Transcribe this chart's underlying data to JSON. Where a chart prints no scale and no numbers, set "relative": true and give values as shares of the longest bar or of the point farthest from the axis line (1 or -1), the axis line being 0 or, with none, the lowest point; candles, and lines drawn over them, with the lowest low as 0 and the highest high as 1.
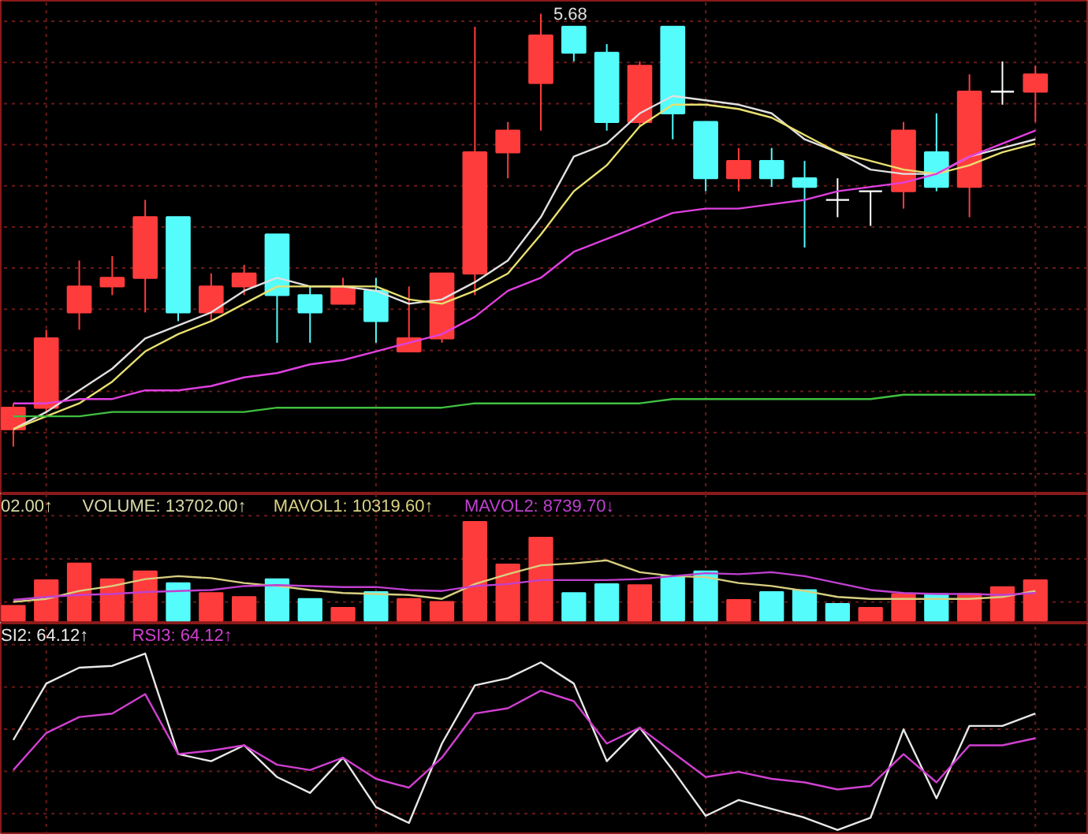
{
  "chart_data": [
    {
      "type": "candlestick",
      "relative": true,
      "grid": true,
      "categories": [
        null,
        null,
        null,
        null,
        null,
        null,
        null,
        null,
        null,
        null,
        null,
        null,
        null,
        null,
        null,
        null,
        null,
        null,
        null,
        null,
        null,
        null,
        null,
        null,
        null,
        null,
        null,
        null,
        null,
        null,
        null,
        null
      ],
      "ohlc": [
        [
          0.04,
          0.1,
          0,
          0.09
        ],
        [
          0.09,
          0.27,
          0.08,
          0.25
        ],
        [
          0.31,
          0.43,
          0.27,
          0.37
        ],
        [
          0.37,
          0.44,
          0.35,
          0.39
        ],
        [
          0.39,
          0.57,
          0.31,
          0.53
        ],
        [
          0.53,
          0.53,
          0.29,
          0.31
        ],
        [
          0.31,
          0.4,
          0.29,
          0.37
        ],
        [
          0.37,
          0.42,
          0.35,
          0.4
        ],
        [
          0.49,
          0.49,
          0.24,
          0.35
        ],
        [
          0.35,
          0.37,
          0.24,
          0.31
        ],
        [
          0.33,
          0.39,
          0.33,
          0.37
        ],
        [
          0.36,
          0.39,
          0.24,
          0.29
        ],
        [
          0.22,
          0.37,
          0.22,
          0.25
        ],
        [
          0.25,
          0.4,
          0.24,
          0.4
        ],
        [
          0.4,
          0.97,
          0.35,
          0.68
        ],
        [
          0.68,
          0.75,
          0.62,
          0.73
        ],
        [
          0.84,
          1.0,
          0.73,
          0.95
        ],
        [
          0.97,
          0.97,
          0.89,
          0.91
        ],
        [
          0.91,
          0.93,
          0.73,
          0.75
        ],
        [
          0.75,
          0.89,
          0.74,
          0.88
        ],
        [
          0.97,
          0.97,
          0.71,
          0.77
        ],
        [
          0.75,
          0.75,
          0.59,
          0.62
        ],
        [
          0.62,
          0.69,
          0.59,
          0.66
        ],
        [
          0.66,
          0.69,
          0.6,
          0.62
        ],
        [
          0.62,
          0.66,
          0.46,
          0.6
        ],
        [
          0.57,
          0.62,
          0.53,
          0.57
        ],
        [
          0.59,
          0.59,
          0.51,
          0.59
        ],
        [
          0.59,
          0.75,
          0.55,
          0.73
        ],
        [
          0.68,
          0.77,
          0.59,
          0.6
        ],
        [
          0.6,
          0.86,
          0.53,
          0.82
        ],
        [
          0.82,
          0.89,
          0.79,
          0.82
        ],
        [
          0.82,
          0.88,
          0.75,
          0.86
        ]
      ],
      "colors": [
        "#ff3c3c",
        "#ff3c3c",
        "#ff3c3c",
        "#ff3c3c",
        "#ff3c3c",
        "#54fcfc",
        "#ff3c3c",
        "#ff3c3c",
        "#54fcfc",
        "#54fcfc",
        "#ff3c3c",
        "#54fcfc",
        "#ff3c3c",
        "#ff3c3c",
        "#ff3c3c",
        "#ff3c3c",
        "#ff3c3c",
        "#54fcfc",
        "#54fcfc",
        "#ff3c3c",
        "#54fcfc",
        "#54fcfc",
        "#ff3c3c",
        "#54fcfc",
        "#54fcfc",
        "#ffffff",
        "#ffffff",
        "#ff3c3c",
        "#54fcfc",
        "#ff3c3c",
        "#ffffff",
        "#ff3c3c"
      ],
      "series": [
        {
          "type": "line",
          "color": "#e0e0e0",
          "values": [
            0.04,
            0.08,
            0.13,
            0.18,
            0.25,
            0.28,
            0.31,
            0.36,
            0.39,
            0.37,
            0.37,
            0.36,
            0.33,
            0.34,
            0.38,
            0.43,
            0.53,
            0.67,
            0.7,
            0.77,
            0.81,
            0.8,
            0.79,
            0.77,
            0.71,
            0.68,
            0.64,
            0.63,
            0.63,
            0.67,
            0.69,
            0.71
          ]
        },
        {
          "type": "line",
          "color": "#e8e070",
          "values": [
            0.04,
            0.07,
            0.1,
            0.15,
            0.22,
            0.26,
            0.29,
            0.33,
            0.37,
            0.37,
            0.37,
            0.37,
            0.34,
            0.33,
            0.36,
            0.4,
            0.49,
            0.59,
            0.65,
            0.74,
            0.79,
            0.79,
            0.78,
            0.76,
            0.72,
            0.68,
            0.66,
            0.64,
            0.63,
            0.65,
            0.68,
            0.7
          ]
        },
        {
          "type": "line",
          "color": "#e040e0",
          "values": [
            0.1,
            0.1,
            0.11,
            0.11,
            0.13,
            0.13,
            0.14,
            0.16,
            0.17,
            0.19,
            0.2,
            0.22,
            0.24,
            0.26,
            0.3,
            0.36,
            0.39,
            0.45,
            0.48,
            0.51,
            0.54,
            0.55,
            0.55,
            0.56,
            0.57,
            0.59,
            0.6,
            0.61,
            0.63,
            0.67,
            0.7,
            0.73
          ]
        },
        {
          "type": "line",
          "color": "#40c040",
          "values": [
            0.07,
            0.07,
            0.07,
            0.08,
            0.08,
            0.08,
            0.08,
            0.08,
            0.09,
            0.09,
            0.09,
            0.09,
            0.09,
            0.09,
            0.1,
            0.1,
            0.1,
            0.1,
            0.1,
            0.1,
            0.11,
            0.11,
            0.11,
            0.11,
            0.11,
            0.11,
            0.11,
            0.12,
            0.12,
            0.12,
            0.12,
            0.12
          ]
        }
      ],
      "annotations": [
        "5.68"
      ]
    },
    {
      "type": "bar",
      "relative": true,
      "grid": true,
      "legend": "top left",
      "categories": [
        null,
        null,
        null,
        null,
        null,
        null,
        null,
        null,
        null,
        null,
        null,
        null,
        null,
        null,
        null,
        null,
        null,
        null,
        null,
        null,
        null,
        null,
        null,
        null,
        null,
        null,
        null,
        null,
        null,
        null,
        null,
        null
      ],
      "values": [
        0.15,
        0.41,
        0.58,
        0.42,
        0.5,
        0.38,
        0.28,
        0.24,
        0.42,
        0.22,
        0.13,
        0.29,
        0.22,
        0.19,
        1.0,
        0.57,
        0.84,
        0.28,
        0.37,
        0.36,
        0.45,
        0.5,
        0.21,
        0.29,
        0.31,
        0.17,
        0.13,
        0.27,
        0.27,
        0.27,
        0.34,
        0.41
      ],
      "colors": [
        "#ff3c3c",
        "#ff3c3c",
        "#ff3c3c",
        "#ff3c3c",
        "#ff3c3c",
        "#54fcfc",
        "#ff3c3c",
        "#ff3c3c",
        "#54fcfc",
        "#54fcfc",
        "#ff3c3c",
        "#54fcfc",
        "#ff3c3c",
        "#ff3c3c",
        "#ff3c3c",
        "#ff3c3c",
        "#ff3c3c",
        "#54fcfc",
        "#54fcfc",
        "#ff3c3c",
        "#54fcfc",
        "#54fcfc",
        "#ff3c3c",
        "#54fcfc",
        "#54fcfc",
        "#54fcfc",
        "#ff3c3c",
        "#ff3c3c",
        "#54fcfc",
        "#ff3c3c",
        "#ff3c3c",
        "#ff3c3c"
      ],
      "annotations": [
        "02.00↑",
        "VOLUME: 13702.00↑"
      ],
      "series": [
        {
          "type": "line",
          "name": "MAVOL1: 10319.60↑",
          "color": "#d8d080",
          "values": [
            0.19,
            0.22,
            0.3,
            0.35,
            0.42,
            0.45,
            0.43,
            0.38,
            0.35,
            0.31,
            0.28,
            0.27,
            0.26,
            0.22,
            0.37,
            0.47,
            0.56,
            0.58,
            0.61,
            0.49,
            0.45,
            0.44,
            0.38,
            0.35,
            0.3,
            0.24,
            0.22,
            0.22,
            0.22,
            0.22,
            0.24,
            0.3
          ]
        },
        {
          "type": "line",
          "name": "MAVOL2: 8739.70↓",
          "color": "#c040d0",
          "values": [
            0.21,
            0.24,
            0.26,
            0.27,
            0.29,
            0.3,
            0.31,
            0.35,
            0.36,
            0.35,
            0.34,
            0.34,
            0.31,
            0.3,
            0.35,
            0.37,
            0.41,
            0.41,
            0.41,
            0.42,
            0.45,
            0.48,
            0.47,
            0.49,
            0.45,
            0.38,
            0.31,
            0.28,
            0.27,
            0.27,
            0.26,
            0.28
          ]
        }
      ]
    },
    {
      "type": "line",
      "relative": true,
      "grid": true,
      "legend": "top left",
      "categories": [
        null,
        null,
        null,
        null,
        null,
        null,
        null,
        null,
        null,
        null,
        null,
        null,
        null,
        null,
        null,
        null,
        null,
        null,
        null,
        null,
        null,
        null,
        null,
        null,
        null,
        null,
        null,
        null,
        null,
        null,
        null,
        null
      ],
      "series": [
        {
          "name": "SI2: 64.12↑",
          "color": "#e8e8e8",
          "values": [
            0.51,
            0.83,
            0.92,
            0.93,
            1.0,
            0.43,
            0.39,
            0.48,
            0.3,
            0.21,
            0.41,
            0.13,
            0.04,
            0.49,
            0.82,
            0.86,
            0.95,
            0.83,
            0.39,
            0.58,
            0.34,
            0.08,
            0.17,
            0.12,
            0.07,
            0.0,
            0.07,
            0.57,
            0.18,
            0.59,
            0.59,
            0.66
          ]
        },
        {
          "name": "RSI3: 64.12↑",
          "color": "#d040d0",
          "values": [
            0.34,
            0.55,
            0.64,
            0.66,
            0.77,
            0.43,
            0.45,
            0.48,
            0.37,
            0.34,
            0.41,
            0.29,
            0.24,
            0.41,
            0.66,
            0.69,
            0.79,
            0.73,
            0.49,
            0.58,
            0.44,
            0.3,
            0.33,
            0.29,
            0.27,
            0.23,
            0.25,
            0.43,
            0.27,
            0.48,
            0.48,
            0.52
          ]
        }
      ]
    }
  ]
}
